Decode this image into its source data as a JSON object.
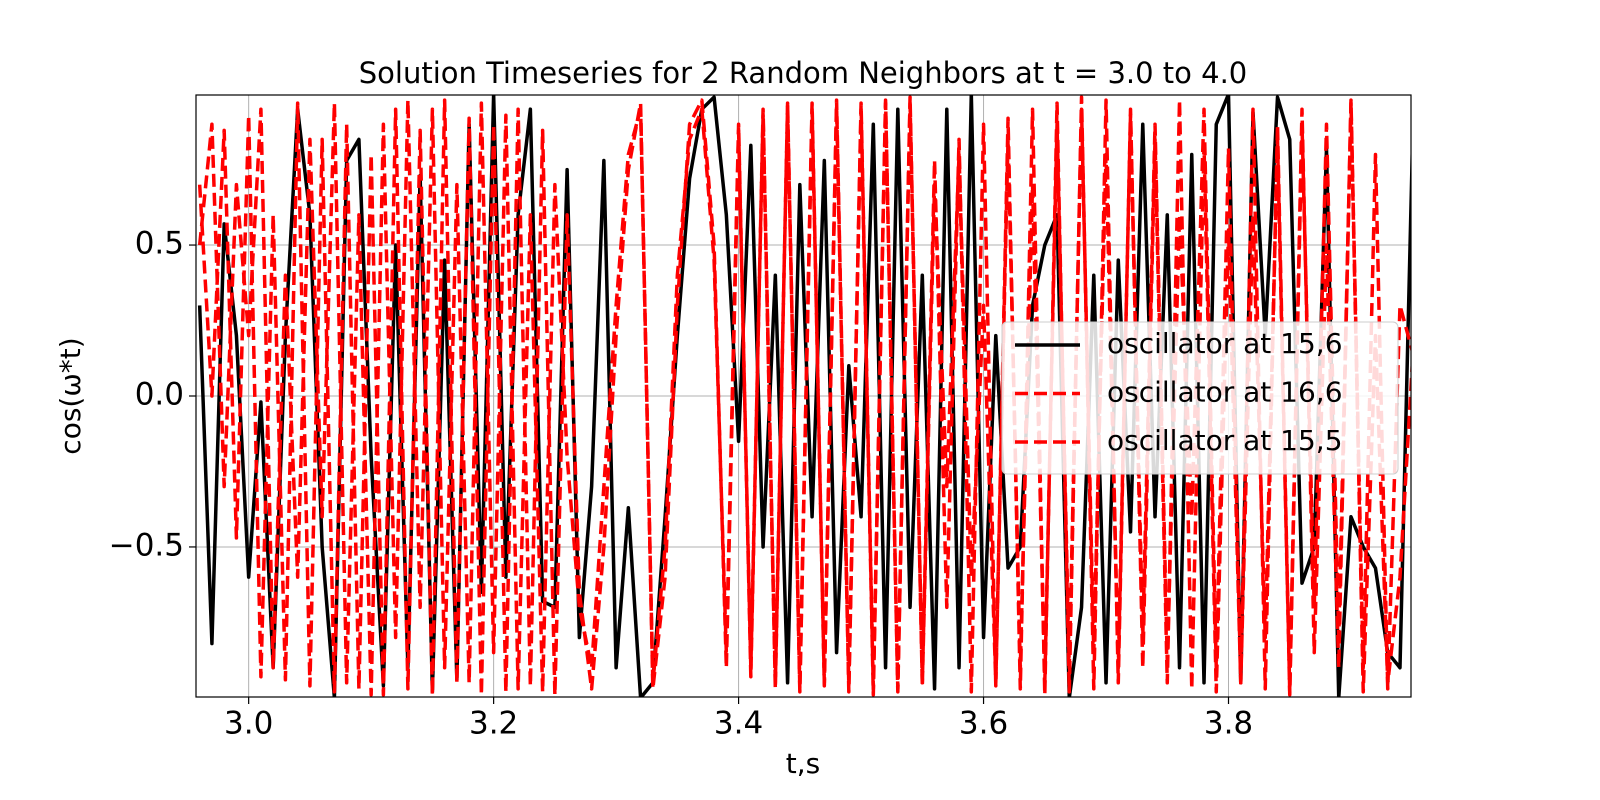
{
  "chart_data": {
    "type": "line",
    "title": "Solution Timeseries for 2 Random Neighbors at t = 3.0 to 4.0",
    "x_label": "t,s",
    "y_label": "cos(ω*t)",
    "x": [
      2.96,
      2.97,
      2.98,
      2.99,
      3.0,
      3.01,
      3.02,
      3.03,
      3.04,
      3.05,
      3.06,
      3.07,
      3.08,
      3.09,
      3.1,
      3.11,
      3.12,
      3.13,
      3.14,
      3.15,
      3.16,
      3.17,
      3.18,
      3.19,
      3.2,
      3.21,
      3.22,
      3.23,
      3.24,
      3.25,
      3.26,
      3.27,
      3.28,
      3.29,
      3.3,
      3.31,
      3.32,
      3.33,
      3.34,
      3.35,
      3.36,
      3.37,
      3.38,
      3.39,
      3.4,
      3.41,
      3.42,
      3.43,
      3.44,
      3.45,
      3.46,
      3.47,
      3.48,
      3.49,
      3.5,
      3.51,
      3.52,
      3.53,
      3.54,
      3.55,
      3.56,
      3.57,
      3.58,
      3.59,
      3.6,
      3.61,
      3.62,
      3.63,
      3.64,
      3.65,
      3.66,
      3.67,
      3.68,
      3.69,
      3.7,
      3.71,
      3.72,
      3.73,
      3.74,
      3.75,
      3.76,
      3.77,
      3.78,
      3.79,
      3.8,
      3.81,
      3.82,
      3.83,
      3.84,
      3.85,
      3.86,
      3.87,
      3.88,
      3.89,
      3.9,
      3.91,
      3.92,
      3.93,
      3.94,
      3.95
    ],
    "series": [
      {
        "name": "oscillator at 15,6",
        "color": "#000000",
        "dashed": false,
        "values": [
          0.3,
          -0.82,
          0.57,
          0.2,
          -0.6,
          -0.02,
          -0.9,
          0.2,
          0.95,
          0.6,
          -0.5,
          -1.0,
          0.78,
          0.85,
          -0.2,
          -0.96,
          0.5,
          -0.9,
          0.73,
          -0.98,
          0.45,
          -0.94,
          0.9,
          -0.65,
          1.0,
          -0.6,
          0.6,
          0.95,
          -0.68,
          -0.7,
          0.75,
          -0.8,
          -0.3,
          0.78,
          -0.9,
          -0.37,
          -1.0,
          -0.95,
          -0.4,
          0.2,
          0.72,
          0.95,
          0.99,
          0.6,
          -0.15,
          0.83,
          -0.5,
          0.4,
          -0.95,
          0.7,
          -0.4,
          0.78,
          -0.85,
          0.1,
          -0.4,
          0.9,
          -0.9,
          0.95,
          -0.7,
          0.4,
          -0.97,
          0.95,
          -0.9,
          1.0,
          -0.8,
          0.2,
          -0.57,
          -0.5,
          0.3,
          0.5,
          0.6,
          -1.0,
          -0.7,
          0.4,
          -0.95,
          0.45,
          -0.45,
          0.9,
          -0.4,
          0.6,
          -0.9,
          0.8,
          -0.95,
          0.9,
          1.0,
          -0.95,
          0.94,
          0.2,
          0.99,
          0.85,
          -0.62,
          -0.5,
          0.82,
          -1.0,
          -0.4,
          -0.5,
          -0.57,
          -0.85,
          -0.9,
          0.8
        ]
      },
      {
        "name": "oscillator at 16,6",
        "color": "#ff0000",
        "dashed": true,
        "values": [
          0.7,
          0.0,
          0.88,
          -0.47,
          0.93,
          -0.93,
          0.6,
          -0.94,
          0.97,
          -0.96,
          0.85,
          -0.98,
          0.9,
          -0.97,
          0.8,
          -0.99,
          0.95,
          -0.97,
          0.88,
          -0.99,
          0.98,
          -0.95,
          0.92,
          -0.99,
          0.9,
          -0.98,
          0.95,
          -0.96,
          0.88,
          -0.99,
          0.6,
          -0.65,
          -0.97,
          -0.5,
          0.2,
          0.75,
          0.97,
          -0.97,
          -0.6,
          0.3,
          0.9,
          0.98,
          0.5,
          -0.9,
          0.88,
          -0.9,
          0.93,
          -0.97,
          0.97,
          -0.98,
          0.95,
          -0.95,
          0.98,
          -0.96,
          0.95,
          -0.99,
          0.97,
          -0.98,
          0.99,
          -0.95,
          0.78,
          -0.7,
          0.85,
          -0.98,
          0.9,
          -0.96,
          0.92,
          -0.97,
          0.95,
          -0.99,
          0.97,
          -0.98,
          0.99,
          -0.97,
          0.98,
          -0.95,
          0.95,
          -0.9,
          0.85,
          -0.95,
          0.98,
          -0.97,
          0.83,
          -0.98,
          0.55,
          -0.95,
          0.95,
          -0.97,
          0.9,
          -0.98,
          0.95,
          -0.85,
          0.5,
          -0.9,
          0.98,
          -0.9,
          0.8,
          -0.97,
          0.3,
          0.15
        ]
      },
      {
        "name": "oscillator at 15,5",
        "color": "#ff0000",
        "dashed": true,
        "values": [
          0.5,
          0.9,
          -0.3,
          0.7,
          0.2,
          0.95,
          -0.9,
          0.4,
          -0.6,
          0.85,
          -0.4,
          0.97,
          -0.95,
          0.6,
          -0.99,
          0.9,
          -0.8,
          0.98,
          -0.7,
          0.95,
          -0.9,
          0.7,
          -0.95,
          0.97,
          -0.85,
          0.93,
          -0.97,
          0.6,
          -0.98,
          0.7,
          -0.2,
          -0.7,
          -0.9,
          -0.3,
          0.3,
          0.8,
          0.95,
          -0.95,
          -0.5,
          0.4,
          0.85,
          0.95,
          0.45,
          -0.85,
          0.9,
          -0.93,
          0.95,
          -0.95,
          0.96,
          -0.97,
          0.97,
          -0.96,
          0.96,
          -0.98,
          0.97,
          -0.97,
          0.98,
          -0.97,
          0.97,
          -0.96,
          0.7,
          -0.3,
          0.8,
          -0.6,
          0.3,
          -0.95,
          0.85,
          -0.9,
          0.7,
          -0.95,
          0.9,
          -0.9,
          0.95,
          -0.85,
          0.8,
          -0.9,
          0.93,
          -0.8,
          0.9,
          -0.88,
          0.6,
          -0.4,
          0.95,
          -0.9,
          0.82,
          -0.95,
          0.6,
          -0.8,
          0.85,
          -0.99,
          0.9,
          -0.7,
          0.9,
          -0.8,
          0.97,
          -0.98,
          0.2,
          -0.95,
          -0.6,
          0.1
        ]
      }
    ],
    "xlim": [
      2.957,
      3.949
    ],
    "ylim": [
      -0.997,
      0.997
    ],
    "xticks": [
      {
        "value": 3,
        "label": "3.0"
      },
      3.2,
      3.4,
      3.6,
      3.8
    ],
    "yticks": [
      {
        "value": -0.5,
        "label": "−0.5"
      },
      {
        "value": 0,
        "label": "0.0"
      },
      0.5
    ],
    "grid": true,
    "legend_position": "right"
  }
}
